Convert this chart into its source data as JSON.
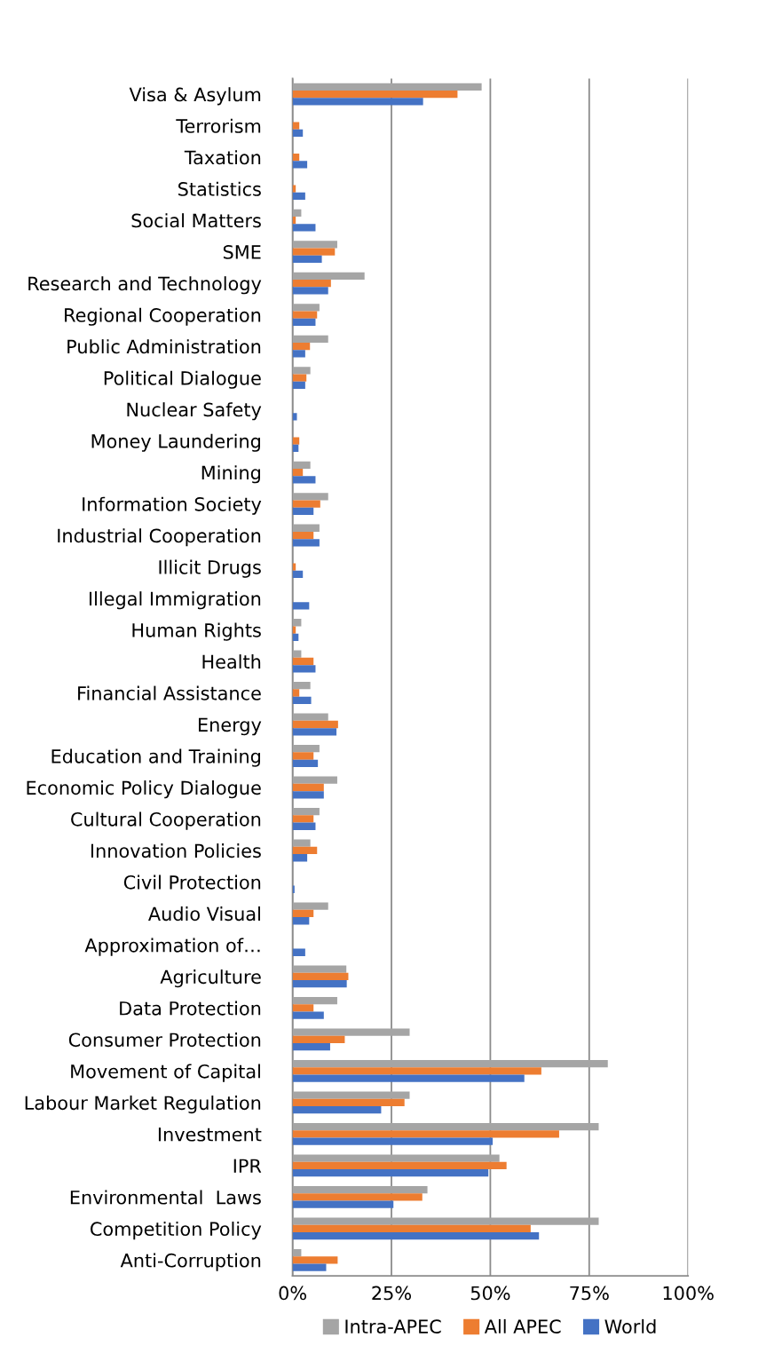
{
  "chart_data": {
    "type": "bar",
    "orientation": "horizontal",
    "categories": [
      "Visa & Asylum",
      "Terrorism",
      "Taxation",
      "Statistics",
      "Social Matters",
      "SME",
      "Research and Technology",
      "Regional Cooperation",
      "Public Administration",
      "Political Dialogue",
      "Nuclear Safety",
      "Money Laundering",
      "Mining",
      "Information Society",
      "Industrial Cooperation",
      "Illicit Drugs",
      "Illegal Immigration",
      "Human Rights",
      "Health",
      "Financial Assistance",
      "Energy",
      "Education and Training",
      "Economic Policy Dialogue",
      "Cultural Cooperation",
      "Innovation Policies",
      "Civil Protection",
      "Audio Visual",
      "Approximation of…",
      "Agriculture",
      "Data Protection",
      "Consumer Protection",
      "Movement of Capital",
      "Labour Market Regulation",
      "Investment",
      "IPR",
      "Environmental  Laws",
      "Competition Policy",
      "Anti-Corruption"
    ],
    "series": [
      {
        "name": "Intra-APEC",
        "color": "#a5a5a5",
        "values": [
          47.8,
          0,
          0,
          0,
          2.2,
          11.3,
          18.2,
          6.8,
          9.0,
          4.5,
          0,
          0,
          4.5,
          9.0,
          6.8,
          0,
          0,
          2.2,
          2.2,
          4.5,
          9.0,
          6.8,
          11.3,
          6.8,
          4.5,
          0,
          9.0,
          0,
          13.6,
          11.3,
          29.6,
          79.7,
          29.6,
          77.4,
          52.3,
          34.1,
          77.4,
          2.2
        ]
      },
      {
        "name": "All APEC",
        "color": "#ed7d31",
        "values": [
          41.7,
          1.7,
          1.7,
          0.8,
          0.8,
          10.7,
          9.7,
          6.2,
          4.4,
          3.5,
          0,
          1.7,
          2.6,
          7.0,
          5.3,
          0.8,
          0,
          0.8,
          5.3,
          1.7,
          11.5,
          5.3,
          7.9,
          5.3,
          6.2,
          0,
          5.3,
          0,
          14.1,
          5.3,
          13.2,
          62.9,
          28.3,
          67.4,
          54.1,
          32.8,
          60.2,
          11.4
        ]
      },
      {
        "name": "World",
        "color": "#4472c4",
        "values": [
          33.0,
          2.6,
          3.7,
          3.2,
          5.8,
          7.4,
          9.0,
          5.8,
          3.2,
          3.2,
          1.1,
          1.5,
          5.8,
          5.3,
          6.8,
          2.6,
          4.2,
          1.5,
          5.8,
          4.7,
          11.1,
          6.4,
          7.9,
          5.8,
          3.7,
          0.5,
          4.2,
          3.2,
          13.7,
          7.9,
          9.5,
          58.6,
          22.4,
          50.6,
          49.5,
          25.5,
          62.3,
          8.5
        ]
      }
    ],
    "xlim": [
      0,
      100
    ],
    "xticks": [
      {
        "value": 0,
        "label": "0%"
      },
      {
        "value": 25,
        "label": "25%"
      },
      {
        "value": 50,
        "label": "50%"
      },
      {
        "value": 75,
        "label": "75%"
      },
      {
        "value": 100,
        "label": "100%"
      }
    ],
    "grid": "x",
    "legend": "bottom"
  }
}
